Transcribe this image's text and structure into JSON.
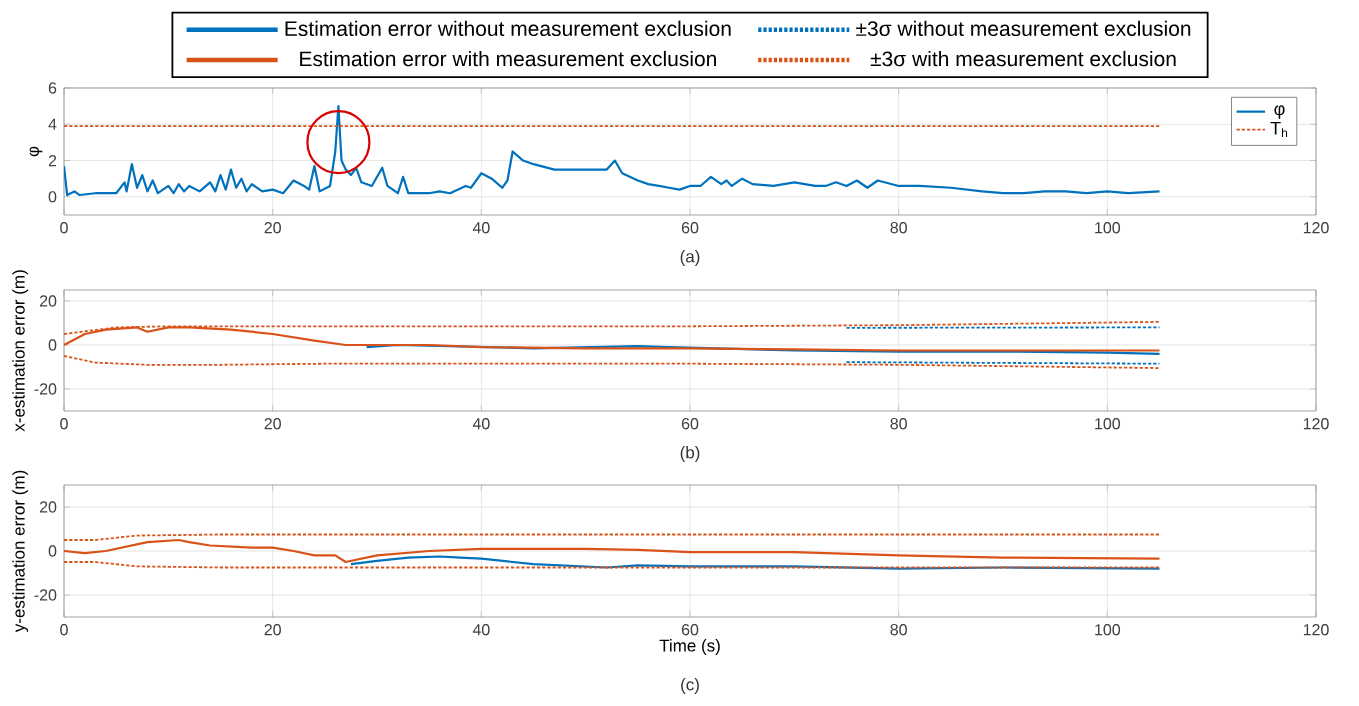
{
  "chart_data": [
    {
      "type": "line",
      "xlim": [
        0,
        120
      ],
      "xticks": [
        0,
        20,
        40,
        60,
        80,
        100,
        120
      ],
      "ylim": [
        -1,
        6
      ],
      "yticks": [
        0,
        2,
        4,
        6
      ],
      "ylabel": "φ",
      "annotations": [
        "(a)"
      ],
      "grid": true,
      "legend": "top right",
      "series": [
        {
          "name": "φ",
          "color": "#0072bd",
          "line_style": "solid",
          "x": [
            0,
            0.3,
            1,
            1.5,
            3,
            5,
            5.8,
            6,
            6.5,
            7,
            7.5,
            8,
            8.5,
            9,
            10,
            10.5,
            11,
            11.5,
            12,
            13,
            14,
            14.5,
            15,
            15.5,
            16,
            16.5,
            17,
            17.5,
            18,
            19,
            20,
            21,
            22,
            23,
            23.5,
            24,
            24.5,
            25.5,
            26,
            26.3,
            26.6,
            27,
            27.5,
            28,
            28.5,
            29.5,
            30.5,
            31,
            32,
            32.5,
            33,
            35,
            36,
            37,
            38.5,
            39,
            40,
            41,
            42,
            42.5,
            43,
            44,
            45,
            47,
            50,
            52,
            52.8,
            53.5,
            55,
            56,
            57,
            58,
            59,
            60,
            61,
            62,
            63,
            63.5,
            64,
            65,
            66,
            68,
            70,
            72,
            73,
            74,
            75,
            76,
            77,
            78,
            80,
            82,
            85,
            88,
            90,
            92,
            94,
            96,
            98,
            100,
            102,
            105
          ],
          "values": [
            1.7,
            0.1,
            0.3,
            0.1,
            0.2,
            0.2,
            0.8,
            0.3,
            1.8,
            0.5,
            1.2,
            0.3,
            0.9,
            0.2,
            0.6,
            0.2,
            0.7,
            0.3,
            0.6,
            0.3,
            0.8,
            0.3,
            1.2,
            0.4,
            1.5,
            0.5,
            1.0,
            0.3,
            0.7,
            0.3,
            0.4,
            0.2,
            0.9,
            0.6,
            0.4,
            1.7,
            0.3,
            0.6,
            2.5,
            5.0,
            2.0,
            1.5,
            1.2,
            1.6,
            0.8,
            0.6,
            1.6,
            0.6,
            0.2,
            1.1,
            0.2,
            0.2,
            0.3,
            0.2,
            0.6,
            0.5,
            1.3,
            1.0,
            0.5,
            0.9,
            2.5,
            2.0,
            1.8,
            1.5,
            1.5,
            1.5,
            2.0,
            1.3,
            0.9,
            0.7,
            0.6,
            0.5,
            0.4,
            0.6,
            0.6,
            1.1,
            0.7,
            0.9,
            0.6,
            1.0,
            0.7,
            0.6,
            0.8,
            0.6,
            0.6,
            0.8,
            0.6,
            0.9,
            0.5,
            0.9,
            0.6,
            0.6,
            0.5,
            0.3,
            0.2,
            0.2,
            0.3,
            0.3,
            0.2,
            0.3,
            0.2,
            0.3
          ]
        },
        {
          "name": "T$_{h}$",
          "color": "#d95319",
          "line_style": "dotted",
          "x": [
            0,
            105
          ],
          "values": [
            3.9,
            3.9
          ]
        }
      ]
    },
    {
      "type": "line",
      "xlim": [
        0,
        120
      ],
      "xticks": [
        0,
        20,
        40,
        60,
        80,
        100,
        120
      ],
      "ylim": [
        -30,
        25
      ],
      "yticks": [
        -20,
        0,
        20
      ],
      "ylabel": "x-estimation error (m)",
      "annotations": [
        "(b)"
      ],
      "grid": true,
      "legend": "top",
      "series": [
        {
          "name": "Estimation error without measurement exclusion",
          "color": "#0072bd",
          "line_style": "solid",
          "x": [
            29,
            32,
            45,
            55,
            58,
            70,
            80,
            90,
            100,
            105
          ],
          "values": [
            -1,
            0,
            -1.5,
            -0.5,
            -1,
            -2.5,
            -3,
            -3,
            -3.5,
            -4
          ]
        },
        {
          "name": "±3σ without measurement exclusion",
          "color": "#0072bd",
          "line_style": "dotted",
          "x": [
            75,
            105
          ],
          "values": [
            7.8,
            8
          ]
        },
        {
          "name": "Estimation error with measurement exclusion",
          "color": "#d95319",
          "line_style": "solid",
          "x": [
            0,
            2,
            4,
            7,
            8,
            10,
            12,
            16,
            20,
            24,
            27,
            30,
            35,
            40,
            50,
            60,
            70,
            80,
            90,
            105
          ],
          "values": [
            0,
            5,
            7,
            8,
            6,
            8,
            8,
            7,
            5,
            2,
            0,
            0,
            0,
            -1,
            -1.5,
            -1.5,
            -2,
            -2.5,
            -2.5,
            -2.5
          ]
        },
        {
          "name": "±3σ with measurement exclusion",
          "color": "#d95319",
          "line_style": "dotted",
          "x": [
            0,
            5,
            10,
            30,
            60,
            80,
            105
          ],
          "values": [
            5,
            8,
            8.5,
            8.5,
            8.5,
            9,
            10.5
          ]
        },
        {
          "color": "#0072bd",
          "line_style": "dotted",
          "x": [
            75,
            105
          ],
          "values": [
            -7.8,
            -8.5
          ]
        },
        {
          "color": "#d95319",
          "line_style": "dotted",
          "x": [
            0,
            3,
            8,
            15,
            25,
            60,
            80,
            105
          ],
          "values": [
            -5,
            -8,
            -9,
            -9,
            -8.5,
            -8.5,
            -9,
            -10.5
          ]
        }
      ]
    },
    {
      "type": "line",
      "xlim": [
        0,
        120
      ],
      "xticks": [
        0,
        20,
        40,
        60,
        80,
        100,
        120
      ],
      "ylim": [
        -30,
        30
      ],
      "yticks": [
        -20,
        0,
        20
      ],
      "xlabel": "Time (s)",
      "ylabel": "y-estimation error (m)",
      "annotations": [
        "(c)"
      ],
      "grid": true,
      "series": [
        {
          "color": "#0072bd",
          "line_style": "solid",
          "x": [
            27.5,
            30,
            33,
            36,
            38,
            40,
            45,
            52,
            55,
            60,
            70,
            80,
            90,
            105
          ],
          "values": [
            -6,
            -4.5,
            -3,
            -2.5,
            -3,
            -3.5,
            -6,
            -7.5,
            -6.5,
            -7,
            -7,
            -8,
            -7.5,
            -8
          ]
        },
        {
          "color": "#d95319",
          "line_style": "solid",
          "x": [
            0,
            2,
            4,
            6,
            8,
            11,
            12,
            14,
            18,
            20,
            22,
            24,
            26,
            27,
            30,
            35,
            40,
            45,
            50,
            55,
            60,
            70,
            80,
            90,
            105
          ],
          "values": [
            0,
            -1,
            0,
            2,
            4,
            5,
            4,
            2.5,
            1.5,
            1.5,
            0,
            -2,
            -2,
            -5,
            -2,
            0,
            1,
            1,
            1,
            0.5,
            -0.5,
            -0.5,
            -2,
            -3,
            -3.5
          ]
        },
        {
          "color": "#d95319",
          "line_style": "dotted",
          "x": [
            0,
            3,
            7,
            15,
            105
          ],
          "values": [
            5,
            5,
            7,
            7.5,
            7.5
          ]
        },
        {
          "color": "#d95319",
          "line_style": "dotted",
          "x": [
            0,
            3,
            7,
            15,
            105
          ],
          "values": [
            -5,
            -5,
            -7,
            -7.5,
            -7.5
          ]
        }
      ]
    }
  ]
}
